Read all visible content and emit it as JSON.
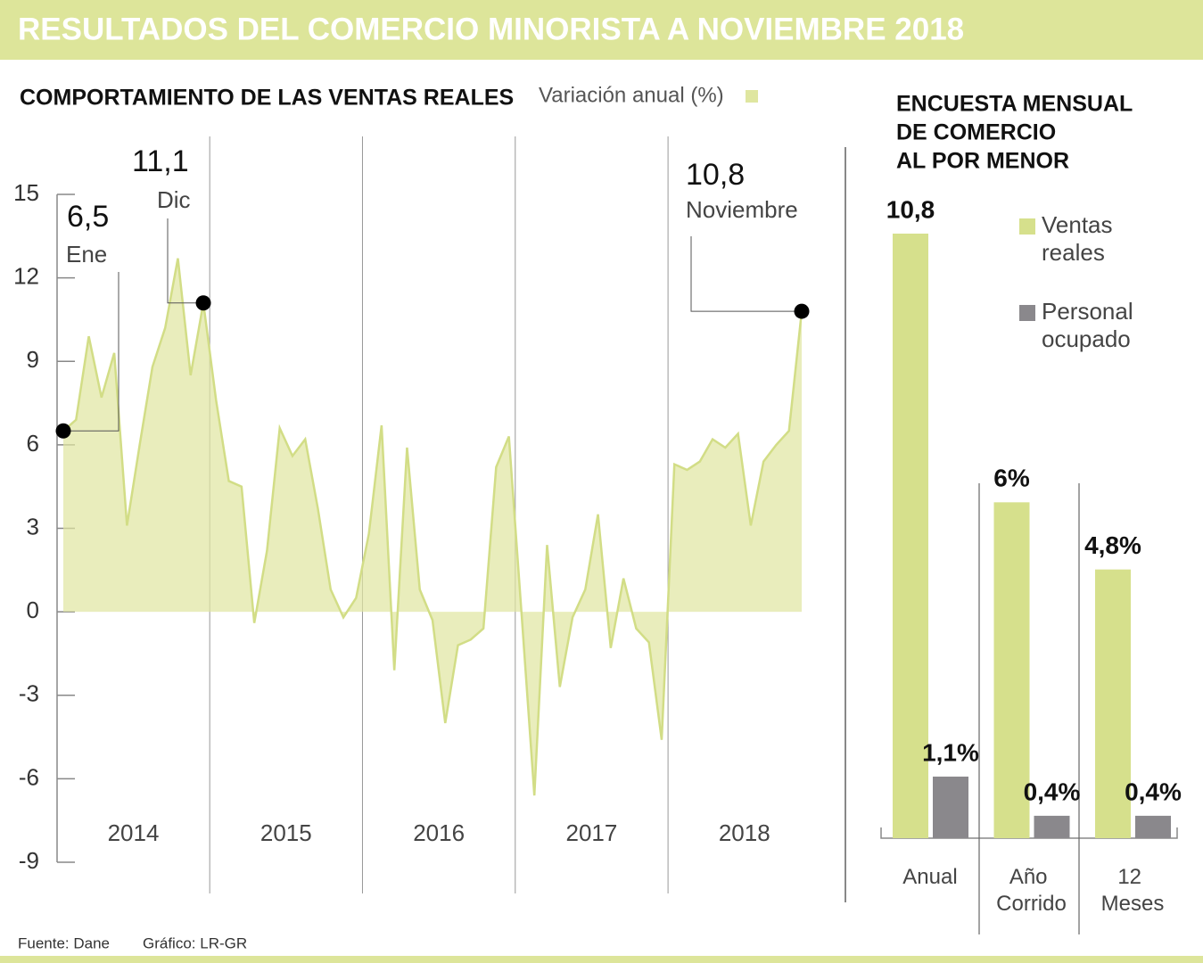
{
  "title": "RESULTADOS DEL COMERCIO MINORISTA A NOVIEMBRE 2018",
  "chart_data": [
    {
      "type": "area",
      "title": "COMPORTAMIENTO DE LAS VENTAS REALES",
      "years": [
        "2014",
        "2015",
        "2016",
        "2017",
        "2018"
      ],
      "ylim": [
        -9,
        15
      ],
      "yticks": [
        -9,
        -6,
        -3,
        0,
        3,
        6,
        9,
        12,
        15
      ],
      "series": [
        {
          "name": "Variación anual (%)",
          "color": "#dfe6a0",
          "values": [
            6.5,
            6.9,
            9.9,
            7.7,
            9.3,
            3.1,
            6.0,
            8.8,
            10.2,
            12.7,
            8.5,
            11.1,
            7.6,
            4.7,
            4.5,
            -0.4,
            2.2,
            6.6,
            5.6,
            6.2,
            3.7,
            0.8,
            -0.2,
            0.5,
            2.8,
            6.7,
            -2.1,
            5.9,
            0.8,
            -0.3,
            -4.0,
            -1.2,
            -1.0,
            -0.6,
            5.2,
            6.3,
            -0.1,
            -6.6,
            2.4,
            -2.7,
            -0.2,
            0.8,
            3.5,
            -1.3,
            1.2,
            -0.6,
            -1.1,
            -4.6,
            5.3,
            5.1,
            5.4,
            6.2,
            5.9,
            6.4,
            3.1,
            5.4,
            6.0,
            6.5,
            10.8
          ],
          "value_labels": [
            "6,5",
            null,
            null,
            null,
            null,
            null,
            null,
            null,
            null,
            null,
            null,
            "11,1",
            null,
            null,
            null,
            null,
            null,
            null,
            null,
            null,
            null,
            null,
            null,
            null,
            null,
            null,
            null,
            null,
            null,
            null,
            null,
            null,
            null,
            null,
            null,
            null,
            null,
            null,
            null,
            null,
            null,
            null,
            null,
            null,
            null,
            null,
            null,
            null,
            null,
            null,
            null,
            null,
            null,
            null,
            null,
            null,
            null,
            null,
            "10,8"
          ],
          "month_labels": [
            "Ene",
            null,
            null,
            null,
            null,
            null,
            null,
            null,
            null,
            null,
            null,
            "Dic",
            null,
            null,
            null,
            null,
            null,
            null,
            null,
            null,
            null,
            null,
            null,
            null,
            null,
            null,
            null,
            null,
            null,
            null,
            null,
            null,
            null,
            null,
            null,
            null,
            null,
            null,
            null,
            null,
            null,
            null,
            null,
            null,
            null,
            null,
            null,
            null,
            null,
            null,
            null,
            null,
            null,
            null,
            null,
            null,
            null,
            null,
            "Noviembre"
          ]
        }
      ]
    },
    {
      "type": "bar",
      "title": [
        "ENCUESTA MENSUAL",
        "DE COMERCIO",
        "AL POR MENOR"
      ],
      "categories": [
        "Anual",
        "Año Corrido",
        "12 Meses"
      ],
      "series": [
        {
          "name": "Ventas reales",
          "color": "#d6e08c",
          "values": [
            10.8,
            6,
            4.8
          ],
          "value_labels": [
            "10,8",
            "6%",
            "4,8%"
          ]
        },
        {
          "name": "Personal ocupado",
          "color": "#8a888c",
          "values": [
            1.1,
            0.4,
            0.4
          ],
          "value_labels": [
            "1,1%",
            "0,4%",
            "0,4%"
          ]
        }
      ]
    }
  ],
  "footer": {
    "source": "Fuente: Dane",
    "credit": "Gráfico: LR-GR"
  }
}
